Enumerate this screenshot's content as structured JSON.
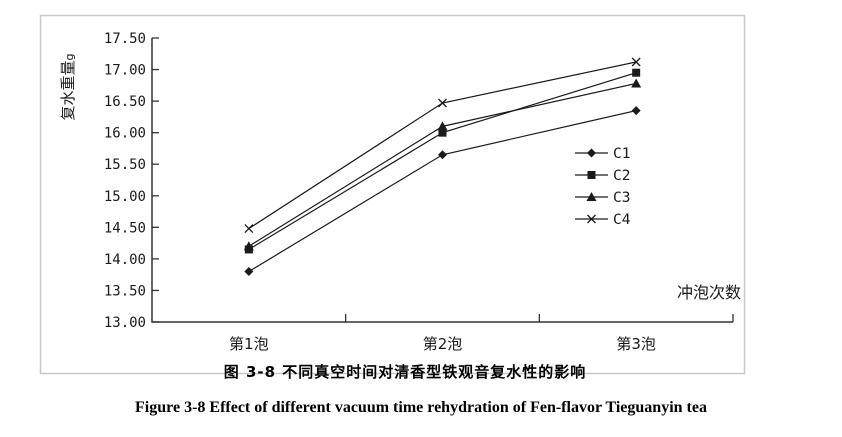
{
  "figure": {
    "caption_zh": "图 3-8 不同真空时间对清香型铁观音复水性的影响",
    "caption_en": "Figure 3-8 Effect of different vacuum time rehydration of Fen-flavor Tieguanyin tea"
  },
  "chart_data": {
    "type": "line",
    "title": "",
    "ylabel": "复水重量",
    "ylabel_unit": "g",
    "xlabel": "冲泡次数",
    "categories": [
      "第1泡",
      "第2泡",
      "第3泡"
    ],
    "series": [
      {
        "name": "C1",
        "marker": "diamond",
        "values": [
          13.8,
          15.65,
          16.35
        ]
      },
      {
        "name": "C2",
        "marker": "square",
        "values": [
          14.15,
          16.0,
          16.95
        ]
      },
      {
        "name": "C3",
        "marker": "triangle",
        "values": [
          14.2,
          16.1,
          16.78
        ]
      },
      {
        "name": "C4",
        "marker": "x",
        "values": [
          14.48,
          16.47,
          17.12
        ]
      }
    ],
    "ylim": [
      13.0,
      17.5
    ],
    "ytick_step": 0.5,
    "yticks": [
      "17.50",
      "17.00",
      "16.50",
      "16.00",
      "15.50",
      "15.00",
      "14.50",
      "14.00",
      "13.50",
      "13.00"
    ],
    "grid": false,
    "legend_position": "right-middle",
    "colors": {
      "series_line": "#1a1a1a",
      "axis": "#333333",
      "frame_border": "#c8c8c8",
      "text": "#1a1a1a",
      "background": "#ffffff"
    }
  }
}
